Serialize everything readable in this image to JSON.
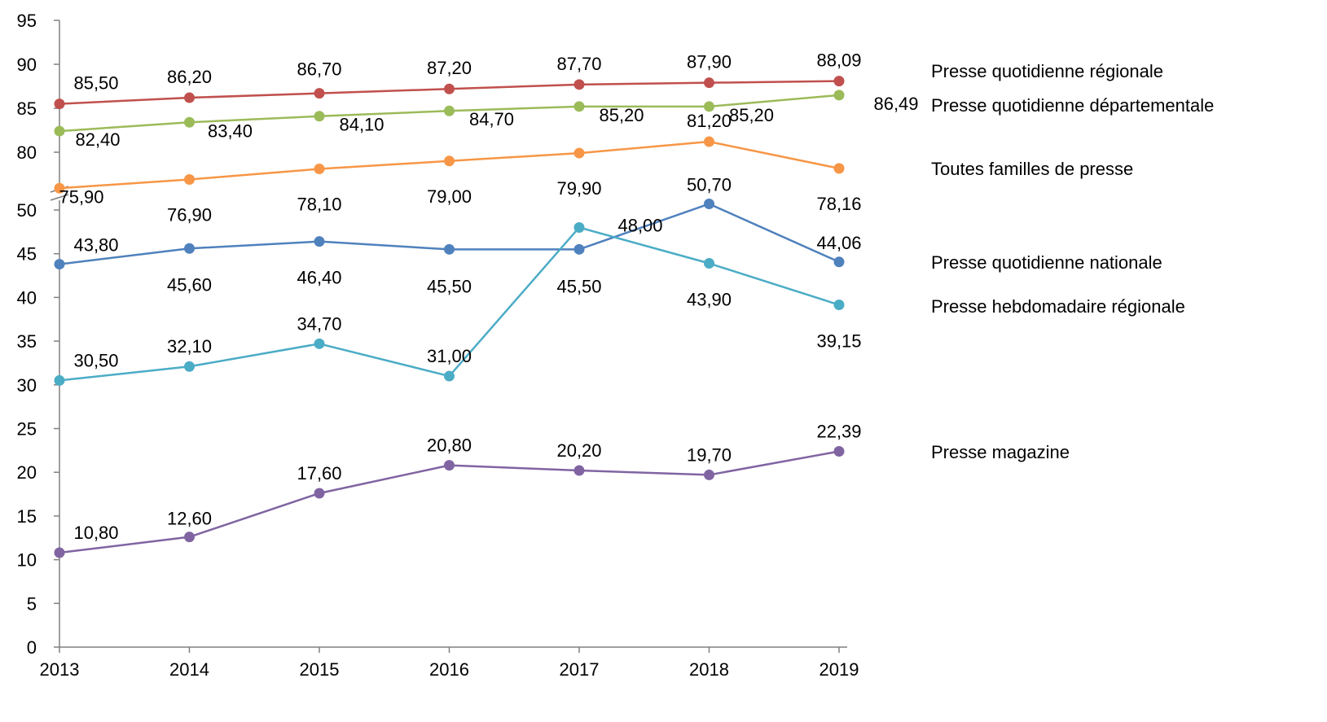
{
  "chart_data": {
    "type": "line",
    "title": "",
    "xlabel": "",
    "ylabel": "",
    "categories": [
      "2013",
      "2014",
      "2015",
      "2016",
      "2017",
      "2018",
      "2019"
    ],
    "y_axis": {
      "broken": true,
      "lower_segment": {
        "range": [
          0,
          50
        ],
        "ticks": [
          "0",
          "5",
          "10",
          "15",
          "20",
          "25",
          "30",
          "35",
          "40",
          "45",
          "50"
        ]
      },
      "upper_segment": {
        "range": [
          75,
          95
        ],
        "ticks": [
          "80",
          "85",
          "90",
          "95"
        ]
      }
    },
    "grid": false,
    "legend": "labels at right end of each line",
    "series": [
      {
        "name": "Presse quotidienne régionale",
        "color": "#C0504D",
        "values": [
          85.5,
          86.2,
          86.7,
          87.2,
          87.7,
          87.9,
          88.09
        ],
        "labels": [
          "85,50",
          "86,20",
          "86,70",
          "87,20",
          "87,70",
          "87,90",
          "88,09"
        ]
      },
      {
        "name": "Presse quotidienne départementale",
        "color": "#9BBB59",
        "values": [
          82.4,
          83.4,
          84.1,
          84.7,
          85.2,
          85.2,
          86.49
        ],
        "labels": [
          "82,40",
          "83,40",
          "84,10",
          "84,70",
          "85,20",
          "85,20",
          "86,49"
        ]
      },
      {
        "name": "Toutes familles de presse",
        "color": "#F79646",
        "values": [
          75.9,
          76.9,
          78.1,
          79.0,
          79.9,
          81.2,
          78.16
        ],
        "labels": [
          "75,90",
          "76,90",
          "78,10",
          "79,00",
          "79,90",
          "81,20",
          "78,16"
        ]
      },
      {
        "name": "Presse quotidienne nationale",
        "color": "#4F81BD",
        "values": [
          43.8,
          45.6,
          46.4,
          45.5,
          45.5,
          50.7,
          44.06
        ],
        "labels": [
          "43,80",
          "45,60",
          "46,40",
          "45,50",
          "45,50",
          "50,70",
          "44,06"
        ]
      },
      {
        "name": "Presse hebdomadaire régionale",
        "color": "#4BACC6",
        "values": [
          30.5,
          32.1,
          34.7,
          31.0,
          48.0,
          43.9,
          39.15
        ],
        "labels": [
          "30,50",
          "32,10",
          "34,70",
          "31,00",
          "48,00",
          "43,90",
          "39,15"
        ]
      },
      {
        "name": "Presse magazine",
        "color": "#8064A2",
        "values": [
          10.8,
          12.6,
          17.6,
          20.8,
          20.2,
          19.7,
          22.39
        ],
        "labels": [
          "10,80",
          "12,60",
          "17,60",
          "20,80",
          "20,20",
          "19,70",
          "22,39"
        ]
      }
    ]
  }
}
